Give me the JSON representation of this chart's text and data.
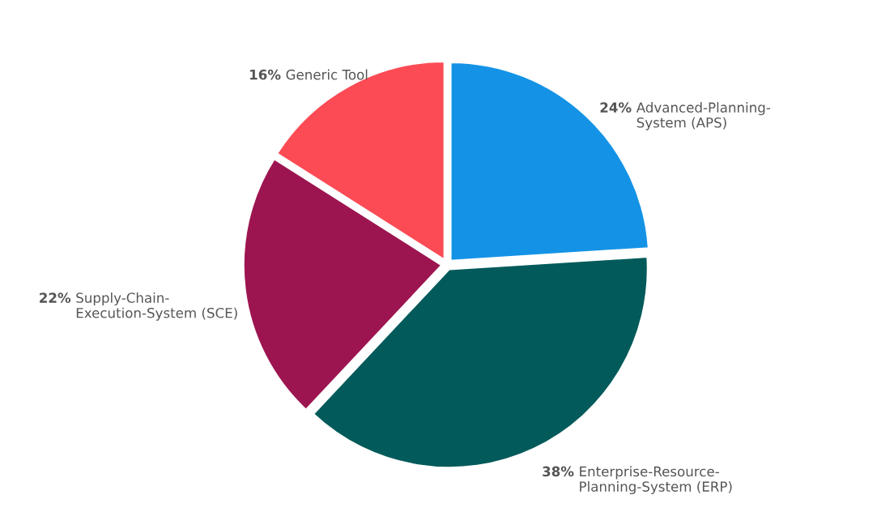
{
  "chart_data": {
    "type": "pie",
    "categories": [
      "Advanced-Planning-\nSystem (APS)",
      "Enterprise-Resource-\nPlanning-System (ERP)",
      "Supply-Chain-\nExecution-System (SCE)",
      "Generic Tool"
    ],
    "values": [
      24,
      38,
      22,
      16
    ],
    "colors": [
      "#1493e6",
      "#025a5a",
      "#9c1550",
      "#fc4b55"
    ],
    "value_labels": [
      "24%",
      "38%",
      "22%",
      "16%"
    ],
    "legend": false
  }
}
